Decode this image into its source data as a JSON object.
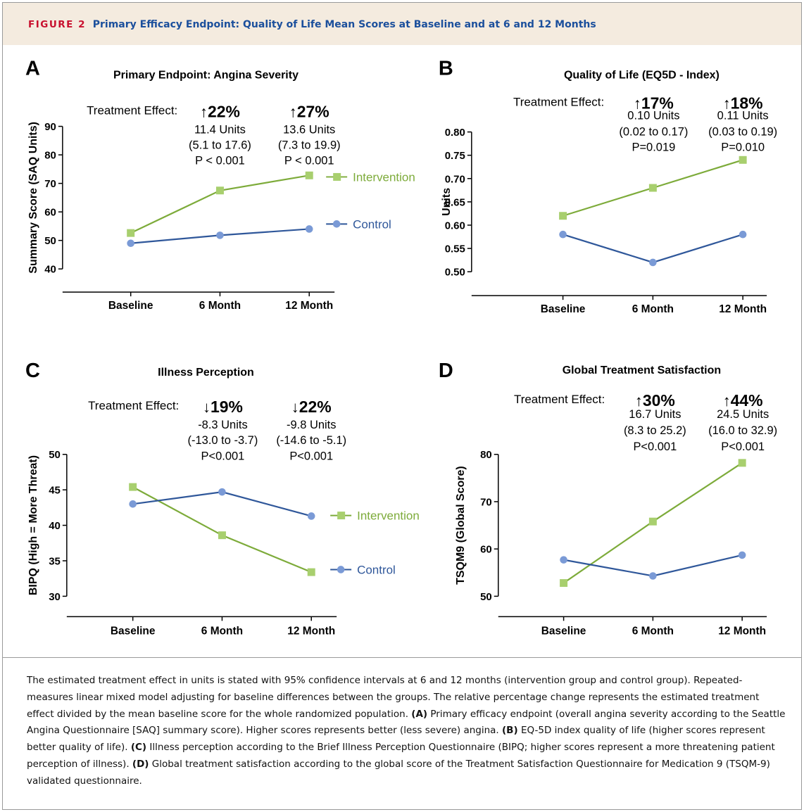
{
  "header": {
    "figure_label": "FIGURE 2",
    "figure_title": "Primary Efficacy Endpoint: Quality of Life Mean Scores at Baseline and at 6 and 12 Months"
  },
  "colors": {
    "intervention": "#7dab3a",
    "intervention_marker": "#a8cf6e",
    "control": "#2f579a",
    "control_marker": "#7a9ad6",
    "header_bg": "#f4ebdf",
    "figure_label": "#c8102e",
    "figure_title": "#1b4f9c"
  },
  "chart_data": [
    {
      "panel": "A",
      "type": "line",
      "title": "Primary Endpoint: Angina Severity",
      "xlabel": "",
      "ylabel": "Summary Score (SAQ Units)",
      "categories": [
        "Baseline",
        "6 Month",
        "12 Month"
      ],
      "ylim": [
        40,
        90
      ],
      "yticks": [
        40,
        50,
        60,
        70,
        80,
        90
      ],
      "ytick_labels": [
        "40",
        "50",
        "60",
        "70",
        "80",
        "90"
      ],
      "series": [
        {
          "name": "Intervention",
          "values": [
            52.6,
            67.5,
            72.8
          ]
        },
        {
          "name": "Control",
          "values": [
            49.0,
            51.8,
            54.0
          ]
        }
      ],
      "treatment_effect_label": "Treatment Effect:",
      "effects": [
        {
          "arrow": "↑",
          "percent": "22%",
          "units": "11.4 Units",
          "ci": "(5.1 to 17.6)",
          "p": "P < 0.001"
        },
        {
          "arrow": "↑",
          "percent": "27%",
          "units": "13.6 Units",
          "ci": "(7.3 to 19.9)",
          "p": "P < 0.001"
        }
      ]
    },
    {
      "panel": "B",
      "type": "line",
      "title": "Quality of Life (EQ5D - Index)",
      "xlabel": "",
      "ylabel": "Units",
      "categories": [
        "Baseline",
        "6 Month",
        "12 Month"
      ],
      "ylim": [
        0.5,
        0.8
      ],
      "yticks": [
        0.5,
        0.55,
        0.6,
        0.65,
        0.7,
        0.75,
        0.8
      ],
      "ytick_labels": [
        "0.50",
        "0.55",
        "0.60",
        "0.65",
        "0.70",
        "0.75",
        "0.80"
      ],
      "series": [
        {
          "name": "Intervention",
          "values": [
            0.62,
            0.68,
            0.74
          ]
        },
        {
          "name": "Control",
          "values": [
            0.58,
            0.52,
            0.58
          ]
        }
      ],
      "treatment_effect_label": "Treatment Effect:",
      "effects": [
        {
          "arrow": "↑",
          "percent": "17%",
          "units": "0.10 Units",
          "ci": "(0.02 to 0.17)",
          "p": "P=0.019"
        },
        {
          "arrow": "↑",
          "percent": "18%",
          "units": "0.11 Units",
          "ci": "(0.03 to 0.19)",
          "p": "P=0.010"
        }
      ]
    },
    {
      "panel": "C",
      "type": "line",
      "title": "Illness Perception",
      "xlabel": "",
      "ylabel": "BIPQ (High = More Threat)",
      "categories": [
        "Baseline",
        "6 Month",
        "12 Month"
      ],
      "ylim": [
        30,
        50
      ],
      "yticks": [
        30,
        35,
        40,
        45,
        50
      ],
      "ytick_labels": [
        "30",
        "35",
        "40",
        "45",
        "50"
      ],
      "series": [
        {
          "name": "Intervention",
          "values": [
            45.4,
            38.6,
            33.4
          ]
        },
        {
          "name": "Control",
          "values": [
            43.0,
            44.7,
            41.3
          ]
        }
      ],
      "treatment_effect_label": "Treatment Effect:",
      "effects": [
        {
          "arrow": "↓",
          "percent": "19%",
          "units": "-8.3 Units",
          "ci": "(-13.0 to -3.7)",
          "p": "P<0.001"
        },
        {
          "arrow": "↓",
          "percent": "22%",
          "units": "-9.8 Units",
          "ci": "(-14.6 to -5.1)",
          "p": "P<0.001"
        }
      ]
    },
    {
      "panel": "D",
      "type": "line",
      "title": "Global Treatment Satisfaction",
      "xlabel": "",
      "ylabel": "TSQM9 (Global Score)",
      "categories": [
        "Baseline",
        "6 Month",
        "12 Month"
      ],
      "ylim": [
        50,
        80
      ],
      "yticks": [
        50,
        60,
        70,
        80
      ],
      "ytick_labels": [
        "50",
        "60",
        "70",
        "80"
      ],
      "series": [
        {
          "name": "Intervention",
          "values": [
            52.8,
            65.8,
            78.2
          ]
        },
        {
          "name": "Control",
          "values": [
            57.7,
            54.3,
            58.7
          ]
        }
      ],
      "treatment_effect_label": "Treatment Effect:",
      "effects": [
        {
          "arrow": "↑",
          "percent": "30%",
          "units": "16.7 Units",
          "ci": "(8.3 to 25.2)",
          "p": "P<0.001"
        },
        {
          "arrow": "↑",
          "percent": "44%",
          "units": "24.5 Units",
          "ci": "(16.0 to 32.9)",
          "p": "P<0.001"
        }
      ]
    }
  ],
  "caption": {
    "intro": "The estimated treatment effect in units is stated with 95% confidence intervals at 6 and 12 months (intervention group and control group). Repeated-measures linear mixed model adjusting for baseline differences between the groups. The relative percentage change represents the estimated treatment effect divided by the mean baseline score for the whole randomized population.",
    "a_label": "(A)",
    "a_text": "Primary efficacy endpoint (overall angina severity according to the Seattle Angina Questionnaire [SAQ] summary score). Higher scores represents better (less severe) angina.",
    "b_label": "(B)",
    "b_text": "EQ-5D index quality of life (higher scores represent better quality of life).",
    "c_label": "(C)",
    "c_text": "Illness perception according to the Brief Illness Perception Questionnaire (BIPQ; higher scores represent a more threatening patient perception of illness).",
    "d_label": "(D)",
    "d_text": "Global treatment satisfaction according to the global score of the Treatment Satisfaction Questionnaire for Medication 9 (TSQM-9) validated questionnaire."
  }
}
